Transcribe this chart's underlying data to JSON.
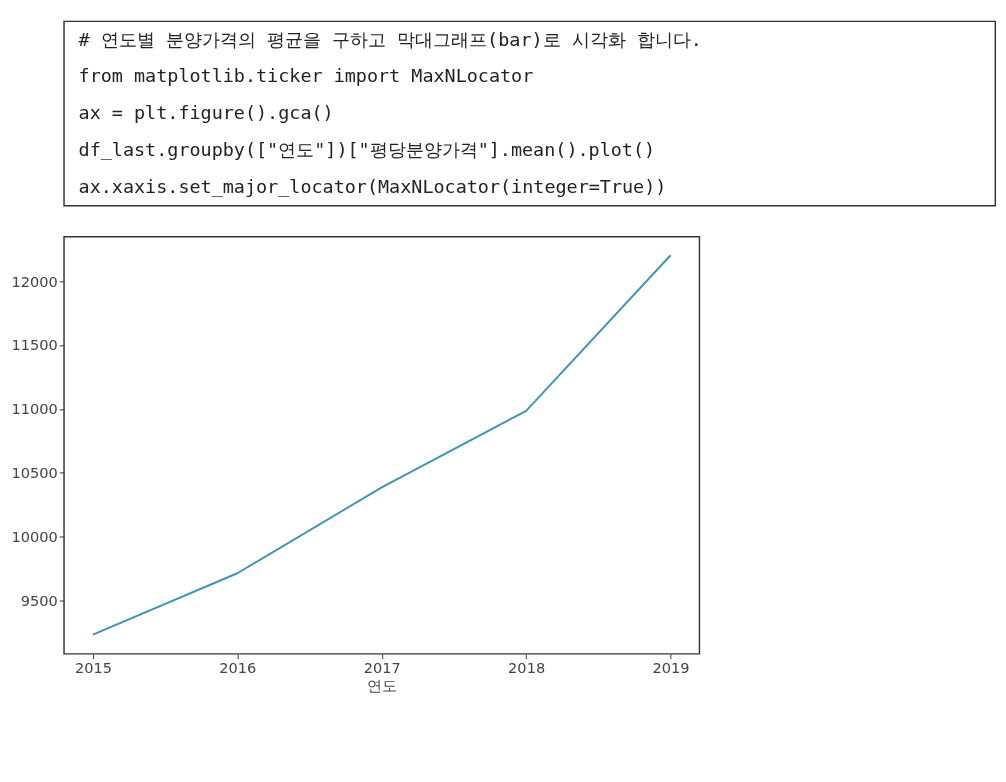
{
  "chart_data": {
    "type": "line",
    "annotations": [
      "# 연도별 분양가격의 평균을 구하고 막대그래프(bar)로 시각화 합니다.",
      "from matplotlib.ticker import MaxNLocator",
      "ax = plt.figure().gca()",
      "df_last.groupby([\"연도\"])[\"평당분양가격\"].mean().plot()",
      "ax.xaxis.set_major_locator(MaxNLocator(integer=True))"
    ],
    "xlabel": "연도",
    "x": [
      2015,
      2016,
      2017,
      2018,
      2019
    ],
    "series": [
      {
        "color": "#4194b3",
        "values": [
          9231,
          9712,
          10385,
          10985,
          12205
        ]
      }
    ],
    "xlim": [
      2014.8,
      2019.2
    ],
    "xticks": [
      2015,
      2016,
      2017,
      2018,
      2019
    ],
    "ylim": [
      9080,
      12350
    ],
    "yticks": [
      9500,
      10000,
      10500,
      11000,
      11500,
      12000
    ],
    "grid": false,
    "line_style": "solid",
    "marker": "none"
  }
}
